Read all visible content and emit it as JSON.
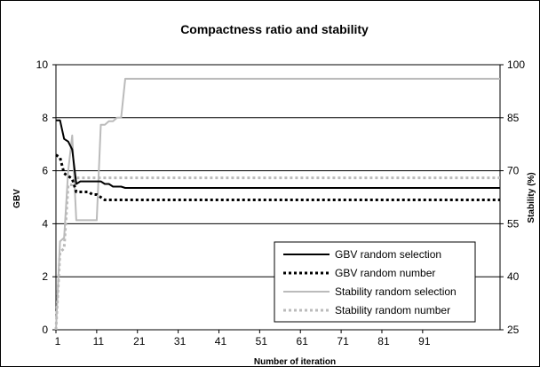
{
  "chart_data": {
    "type": "line",
    "title": "Compactness ratio and stability",
    "xlabel": "Number of iteration",
    "ylabel": "GBV",
    "y2label": "Stability (%)",
    "xlim": [
      1,
      110
    ],
    "ylim": [
      0,
      10
    ],
    "y2lim": [
      25,
      100
    ],
    "xticks": [
      "1",
      "11",
      "21",
      "31",
      "41",
      "51",
      "61",
      "71",
      "81",
      "91"
    ],
    "yticks": [
      "0",
      "2",
      "4",
      "6",
      "8",
      "10"
    ],
    "y2ticks": [
      "25",
      "40",
      "55",
      "70",
      "85",
      "100"
    ],
    "grid": "horizontal",
    "legend_position": "bottom-right",
    "series": [
      {
        "name": "GBV random selection",
        "axis": "left",
        "color": "#000000",
        "style": "solid",
        "x": [
          1,
          2,
          3,
          4,
          5,
          6,
          7,
          8,
          9,
          10,
          11,
          12,
          13,
          14,
          15,
          16,
          17,
          18,
          19,
          20,
          25,
          30,
          40,
          50,
          60,
          70,
          80,
          90,
          100,
          110
        ],
        "y": [
          7.9,
          7.9,
          7.2,
          7.1,
          6.8,
          5.5,
          5.6,
          5.6,
          5.6,
          5.6,
          5.6,
          5.6,
          5.5,
          5.5,
          5.4,
          5.4,
          5.4,
          5.35,
          5.35,
          5.35,
          5.35,
          5.35,
          5.35,
          5.35,
          5.35,
          5.35,
          5.35,
          5.35,
          5.35,
          5.35
        ]
      },
      {
        "name": "GBV random number",
        "axis": "left",
        "color": "#000000",
        "style": "dotted",
        "x": [
          1,
          2,
          3,
          4,
          5,
          6,
          7,
          8,
          9,
          10,
          11,
          12,
          13,
          14,
          15,
          16,
          20,
          30,
          40,
          50,
          60,
          70,
          80,
          90,
          100,
          110
        ],
        "y": [
          6.6,
          6.5,
          5.9,
          5.8,
          5.7,
          5.2,
          5.2,
          5.2,
          5.2,
          5.1,
          5.1,
          5.0,
          4.9,
          4.9,
          4.9,
          4.9,
          4.9,
          4.9,
          4.9,
          4.9,
          4.9,
          4.9,
          4.9,
          4.9,
          4.9,
          4.9
        ]
      },
      {
        "name": "Stability random selection",
        "axis": "right",
        "color": "#bbbbbb",
        "style": "solid",
        "x": [
          1,
          2,
          3,
          4,
          5,
          6,
          7,
          8,
          9,
          10,
          11,
          12,
          13,
          14,
          15,
          16,
          17,
          18,
          19,
          20,
          30,
          40,
          50,
          60,
          70,
          80,
          90,
          100,
          110
        ],
        "y": [
          25,
          50,
          51,
          70,
          80,
          56,
          56,
          56,
          56,
          56,
          56,
          83,
          83,
          84,
          84,
          85,
          85,
          96,
          96,
          96,
          96,
          96,
          96,
          96,
          96,
          96,
          96,
          96,
          96
        ]
      },
      {
        "name": "Stability random number",
        "axis": "right",
        "color": "#bbbbbb",
        "style": "dotted",
        "x": [
          1,
          2,
          3,
          4,
          5,
          6,
          7,
          8,
          9,
          10,
          11,
          12,
          13,
          14,
          15,
          16,
          20,
          30,
          40,
          50,
          60,
          70,
          80,
          90,
          100,
          110
        ],
        "y": [
          25,
          47,
          48,
          66,
          66,
          68,
          68,
          68,
          68,
          68,
          68,
          68,
          68,
          68,
          68,
          68,
          68,
          68,
          68,
          68,
          68,
          68,
          68,
          68,
          68,
          68
        ]
      }
    ]
  }
}
